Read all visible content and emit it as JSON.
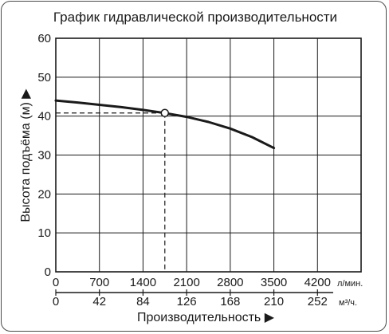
{
  "chart_data": {
    "type": "line",
    "title": "График гидравлической производительности",
    "ylabel": "Высота подъёма (м)",
    "xlabel": "Производительность",
    "ylim": [
      0,
      60
    ],
    "xlim": [
      0,
      4900
    ],
    "y_ticks": [
      "0",
      "10",
      "20",
      "30",
      "40",
      "50",
      "60"
    ],
    "x_ticks_lmin": [
      "0",
      "700",
      "1400",
      "2100",
      "2800",
      "3500",
      "4200"
    ],
    "x_unit_lmin": "л/мин.",
    "x_ticks_m3h": [
      "0",
      "42",
      "84",
      "126",
      "168",
      "210",
      "252"
    ],
    "x_unit_m3h": "м³/ч.",
    "grid": true,
    "series": [
      {
        "x": [
          0,
          350,
          700,
          1050,
          1400,
          1750,
          2100,
          2450,
          2800,
          3150,
          3500
        ],
        "y": [
          44,
          43.5,
          42.9,
          42.3,
          41.6,
          40.8,
          39.8,
          38.5,
          36.8,
          34.6,
          31.8
        ]
      }
    ],
    "operating_point": {
      "x": 1750,
      "y": 40.8
    },
    "colors": {
      "line": "#1a1a1a",
      "grid": "#1a1a1a",
      "guide": "#1a1a1a",
      "marker_fill": "#ffffff"
    }
  }
}
